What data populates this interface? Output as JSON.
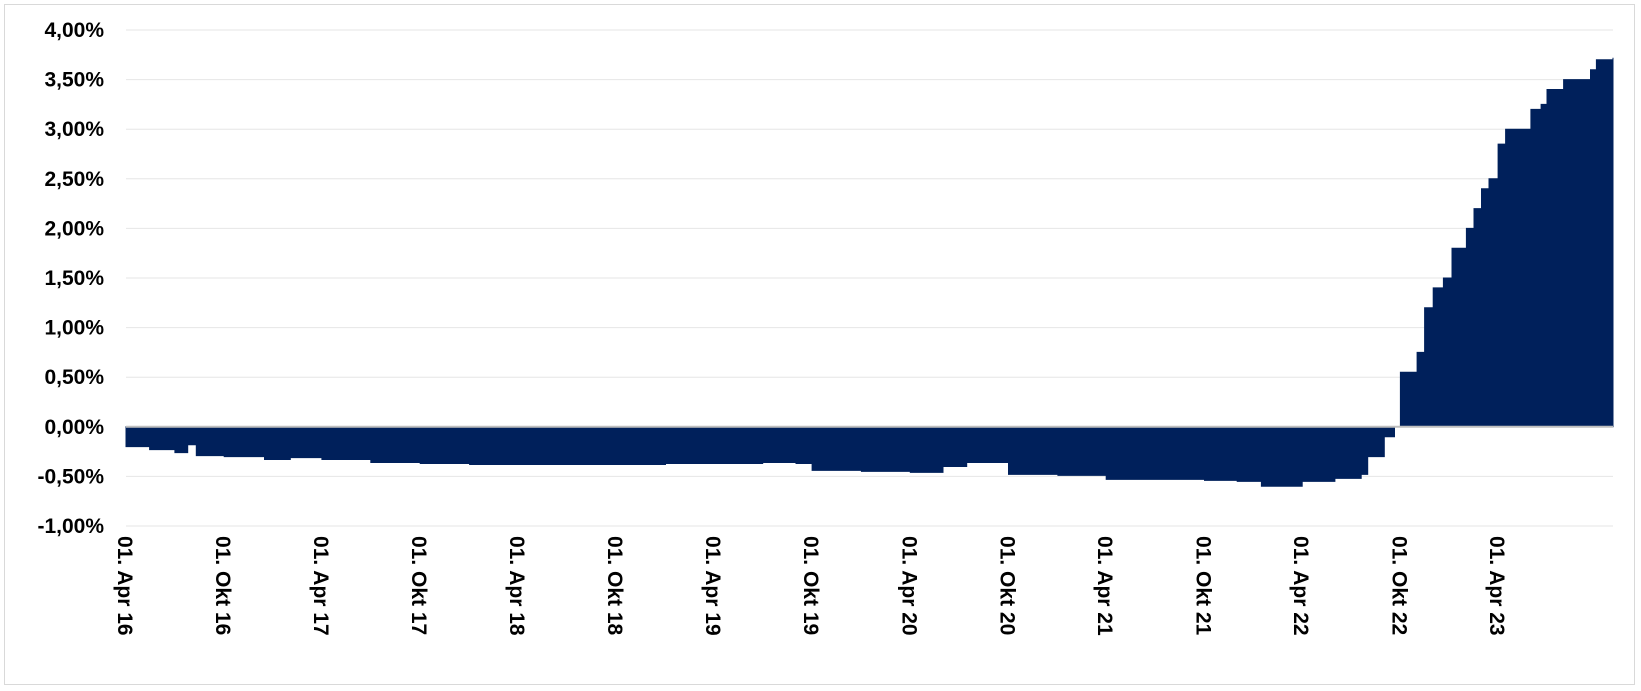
{
  "chart_data": {
    "type": "area",
    "title": "",
    "xlabel": "",
    "ylabel": "",
    "grid": true,
    "legend": "none",
    "color": "#00205b",
    "ylim": [
      -1.0,
      4.0
    ],
    "xlim": [
      "2016-04-01",
      "2023-11-01"
    ],
    "y_ticks": [
      4.0,
      3.5,
      3.0,
      2.5,
      2.0,
      1.5,
      1.0,
      0.5,
      0.0,
      -0.5,
      -1.0
    ],
    "y_tick_labels": [
      "4,00%",
      "3,50%",
      "3,00%",
      "2,50%",
      "2,00%",
      "1,50%",
      "1,00%",
      "0,50%",
      "0,00%",
      "-0,50%",
      "-1,00%"
    ],
    "x_ticks": [
      "2016-04-01",
      "2016-10-01",
      "2017-04-01",
      "2017-10-01",
      "2018-04-01",
      "2018-10-01",
      "2019-04-01",
      "2019-10-01",
      "2020-04-01",
      "2020-10-01",
      "2021-04-01",
      "2021-10-01",
      "2022-04-01",
      "2022-10-01",
      "2023-04-01"
    ],
    "x_tick_labels": [
      "01. Apr 16",
      "01. Okt 16",
      "01. Apr 17",
      "01. Okt 17",
      "01. Apr 18",
      "01. Okt 18",
      "01. Apr 19",
      "01. Okt 19",
      "01. Apr 20",
      "01. Okt 20",
      "01. Apr 21",
      "01. Okt 21",
      "01. Apr 22",
      "01. Okt 22",
      "01. Apr 23"
    ],
    "series": [
      {
        "x": [
          "2016-04-01",
          "2016-05-15",
          "2016-07-01",
          "2016-07-25",
          "2016-08-10",
          "2016-10-01",
          "2016-12-15",
          "2017-02-01",
          "2017-04-01",
          "2017-07-01",
          "2017-10-01",
          "2018-01-01",
          "2018-04-01",
          "2018-07-01",
          "2018-10-01",
          "2019-01-01",
          "2019-04-01",
          "2019-07-01",
          "2019-09-01",
          "2019-10-01",
          "2020-01-01",
          "2020-04-01",
          "2020-06-01",
          "2020-07-15",
          "2020-10-01",
          "2021-01-01",
          "2021-04-01",
          "2021-07-01",
          "2021-10-01",
          "2021-12-01",
          "2022-01-15",
          "2022-04-01",
          "2022-06-01",
          "2022-07-20",
          "2022-08-01",
          "2022-09-01",
          "2022-09-20",
          "2022-10-01",
          "2022-11-01",
          "2022-11-15",
          "2022-12-01",
          "2022-12-20",
          "2023-01-05",
          "2023-02-01",
          "2023-02-15",
          "2023-03-01",
          "2023-03-15",
          "2023-04-01",
          "2023-04-15",
          "2023-05-01",
          "2023-06-01",
          "2023-06-20",
          "2023-07-01",
          "2023-08-01",
          "2023-09-01",
          "2023-09-20",
          "2023-10-01",
          "2023-11-01"
        ],
        "values": [
          -0.2,
          -0.23,
          -0.26,
          -0.18,
          -0.29,
          -0.3,
          -0.33,
          -0.31,
          -0.33,
          -0.36,
          -0.37,
          -0.38,
          -0.38,
          -0.38,
          -0.38,
          -0.37,
          -0.37,
          -0.36,
          -0.37,
          -0.44,
          -0.45,
          -0.46,
          -0.4,
          -0.36,
          -0.48,
          -0.49,
          -0.53,
          -0.53,
          -0.54,
          -0.55,
          -0.6,
          -0.55,
          -0.52,
          -0.48,
          -0.3,
          -0.1,
          0.0,
          0.55,
          0.75,
          1.2,
          1.4,
          1.5,
          1.8,
          2.0,
          2.2,
          2.4,
          2.5,
          2.85,
          3.0,
          3.0,
          3.2,
          3.25,
          3.4,
          3.5,
          3.5,
          3.6,
          3.7,
          3.72
        ]
      }
    ]
  }
}
